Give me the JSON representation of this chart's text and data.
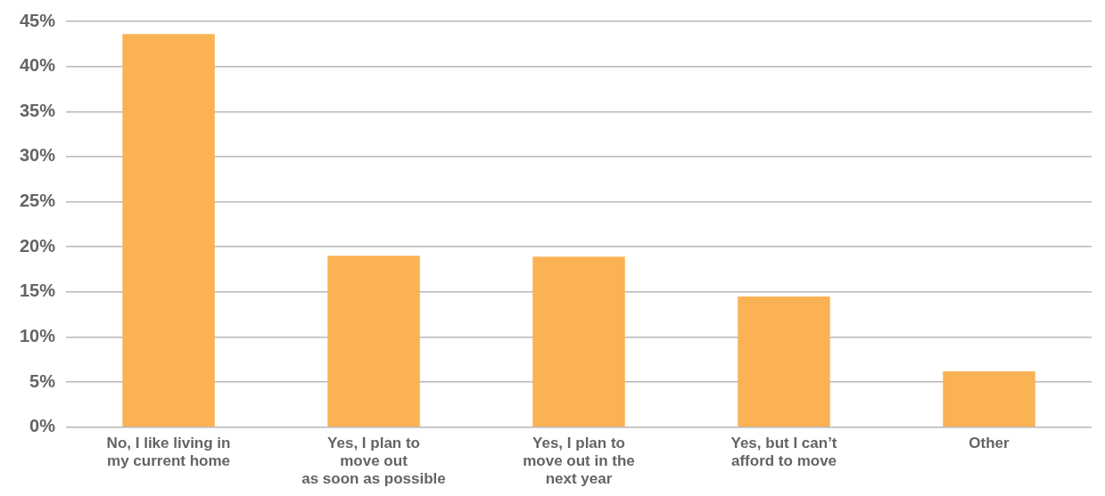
{
  "chart_data": {
    "type": "bar",
    "categories": [
      "No, I like living in\nmy current home",
      "Yes, I plan to\nmove out\nas soon as possible",
      "Yes, I plan to\nmove out in the\nnext year",
      "Yes, but I can’t\nafford to move",
      "Other"
    ],
    "values": [
      43.6,
      19.0,
      18.9,
      14.5,
      6.2
    ],
    "color": "#fbb254",
    "ylim": [
      0,
      45
    ],
    "yticks": [
      {
        "value": 0,
        "label": "0%"
      },
      {
        "value": 5,
        "label": "5%"
      },
      {
        "value": 10,
        "label": "10%"
      },
      {
        "value": 15,
        "label": "15%"
      },
      {
        "value": 20,
        "label": "20%"
      },
      {
        "value": 25,
        "label": "25%"
      },
      {
        "value": 30,
        "label": "30%"
      },
      {
        "value": 35,
        "label": "35%"
      },
      {
        "value": 40,
        "label": "40%"
      },
      {
        "value": 45,
        "label": "45%"
      }
    ],
    "grid": "y"
  }
}
